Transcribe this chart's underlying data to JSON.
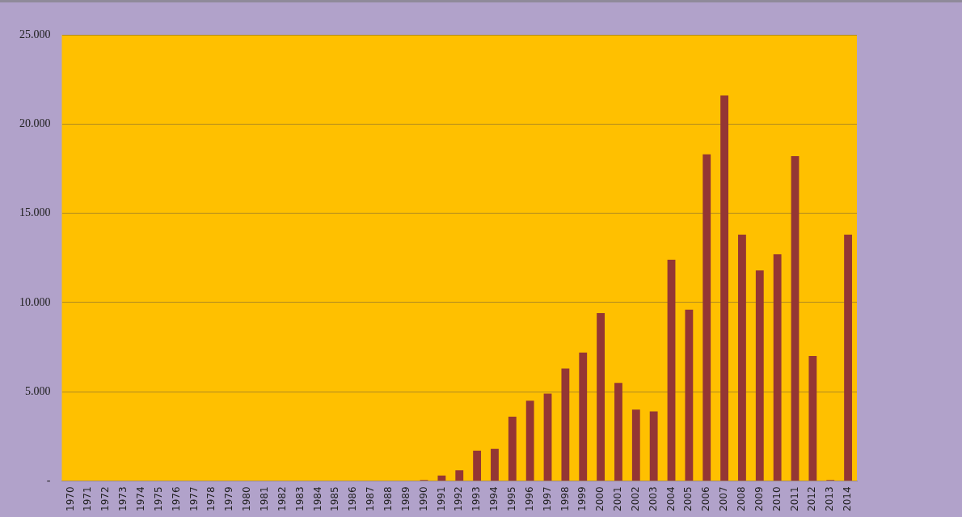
{
  "chart_data": {
    "type": "bar",
    "categories": [
      "1970",
      "1971",
      "1972",
      "1973",
      "1974",
      "1975",
      "1976",
      "1977",
      "1978",
      "1979",
      "1980",
      "1981",
      "1982",
      "1983",
      "1984",
      "1985",
      "1986",
      "1987",
      "1988",
      "1989",
      "1990",
      "1991",
      "1992",
      "1993",
      "1994",
      "1995",
      "1996",
      "1997",
      "1998",
      "1999",
      "2000",
      "2001",
      "2002",
      "2003",
      "2004",
      "2005",
      "2006",
      "2007",
      "2008",
      "2009",
      "2010",
      "2011",
      "2012",
      "2013",
      "2014"
    ],
    "values": [
      0,
      0,
      0,
      0,
      0,
      0,
      0,
      0,
      0,
      0,
      0,
      0,
      0,
      0,
      0,
      0,
      0,
      0,
      0,
      0,
      50,
      300,
      600,
      1700,
      1800,
      3600,
      4500,
      4900,
      6300,
      7200,
      9400,
      5500,
      4000,
      3900,
      12400,
      9600,
      18300,
      21600,
      13800,
      11800,
      12700,
      18200,
      7000,
      50,
      13800
    ],
    "color": "#943634",
    "ylim": [
      0,
      25000
    ],
    "yticks": [
      {
        "value": 0,
        "label": "-"
      },
      {
        "value": 5000,
        "label": "5.000"
      },
      {
        "value": 10000,
        "label": "10.000"
      },
      {
        "value": 15000,
        "label": "15.000"
      },
      {
        "value": 20000,
        "label": "20.000"
      },
      {
        "value": 25000,
        "label": "25.000"
      }
    ],
    "grid": "y"
  }
}
